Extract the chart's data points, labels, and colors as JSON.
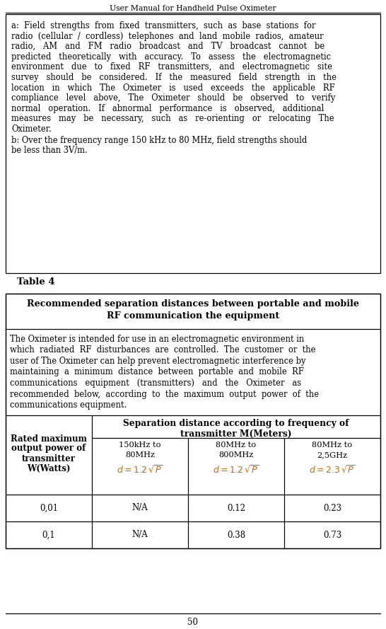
{
  "title": "User Manual for Handheld Pulse Oximeter",
  "page_number": "50",
  "para_a_lines": [
    "a:  Field  strengths  from  fixed  transmitters,  such  as  base  stations  for",
    "radio  (cellular  /  cordless)  telephones  and  land  mobile  radios,  amateur",
    "radio,   AM   and   FM   radio   broadcast   and   TV   broadcast   cannot   be",
    "predicted   theoretically   with   accuracy.   To   assess   the   electromagnetic",
    "environment   due   to   fixed   RF   transmitters,   and   electromagnetic   site",
    "survey   should   be   considered.   If   the   measured   field   strength   in   the",
    "location   in   which   The   Oximeter   is   used   exceeds   the   applicable   RF",
    "compliance   level   above,   The   Oximeter   should   be   observed   to   verify",
    "normal   operation.   If   abnormal   performance   is   observed,   additional",
    "measures   may   be   necessary,   such   as   re-orienting   or   relocating   The",
    "Oximeter."
  ],
  "para_b_lines": [
    "b: Over the frequency range 150 kHz to 80 MHz, field strengths should",
    "be less than 3V/m."
  ],
  "table4_label": "Table 4",
  "table_title_line1": "Recommended separation distances between portable and mobile",
  "table_title_line2": "RF communication the equipment",
  "desc_lines": [
    "The Oximeter is intended for use in an electromagnetic environment in",
    "which  radiated  RF  disturbances  are  controlled.  The  customer  or  the",
    "user of The Oximeter can help prevent electromagnetic interference by",
    "maintaining  a  minimum  distance  between  portable  and  mobile  RF",
    "communications   equipment   (transmitters)   and   the   Oximeter   as",
    "recommended  below,  according  to  the  maximum  output  power  of  the",
    "communications equipment."
  ],
  "col0_lines": [
    "Rated maximum",
    "output power of",
    "transmitter",
    "W(Watts)"
  ],
  "sep_line1": "Separation distance according to frequency of",
  "sep_line2": "transmitter M(Meters)",
  "col1_freq1": "150kHz to",
  "col1_freq2": "80MHz",
  "col2_freq1": "80MHz to",
  "col2_freq2": "800MHz",
  "col3_freq1": "80MHz to",
  "col3_freq2": "2,5GHz",
  "formula_color": "#cc6600",
  "rows": [
    {
      "power": "0,01",
      "col1": "N/A",
      "col2": "0.12",
      "col3": "0.23"
    },
    {
      "power": "0,1",
      "col1": "N/A",
      "col2": "0.38",
      "col3": "0.73"
    }
  ],
  "bg_color": "#ffffff"
}
